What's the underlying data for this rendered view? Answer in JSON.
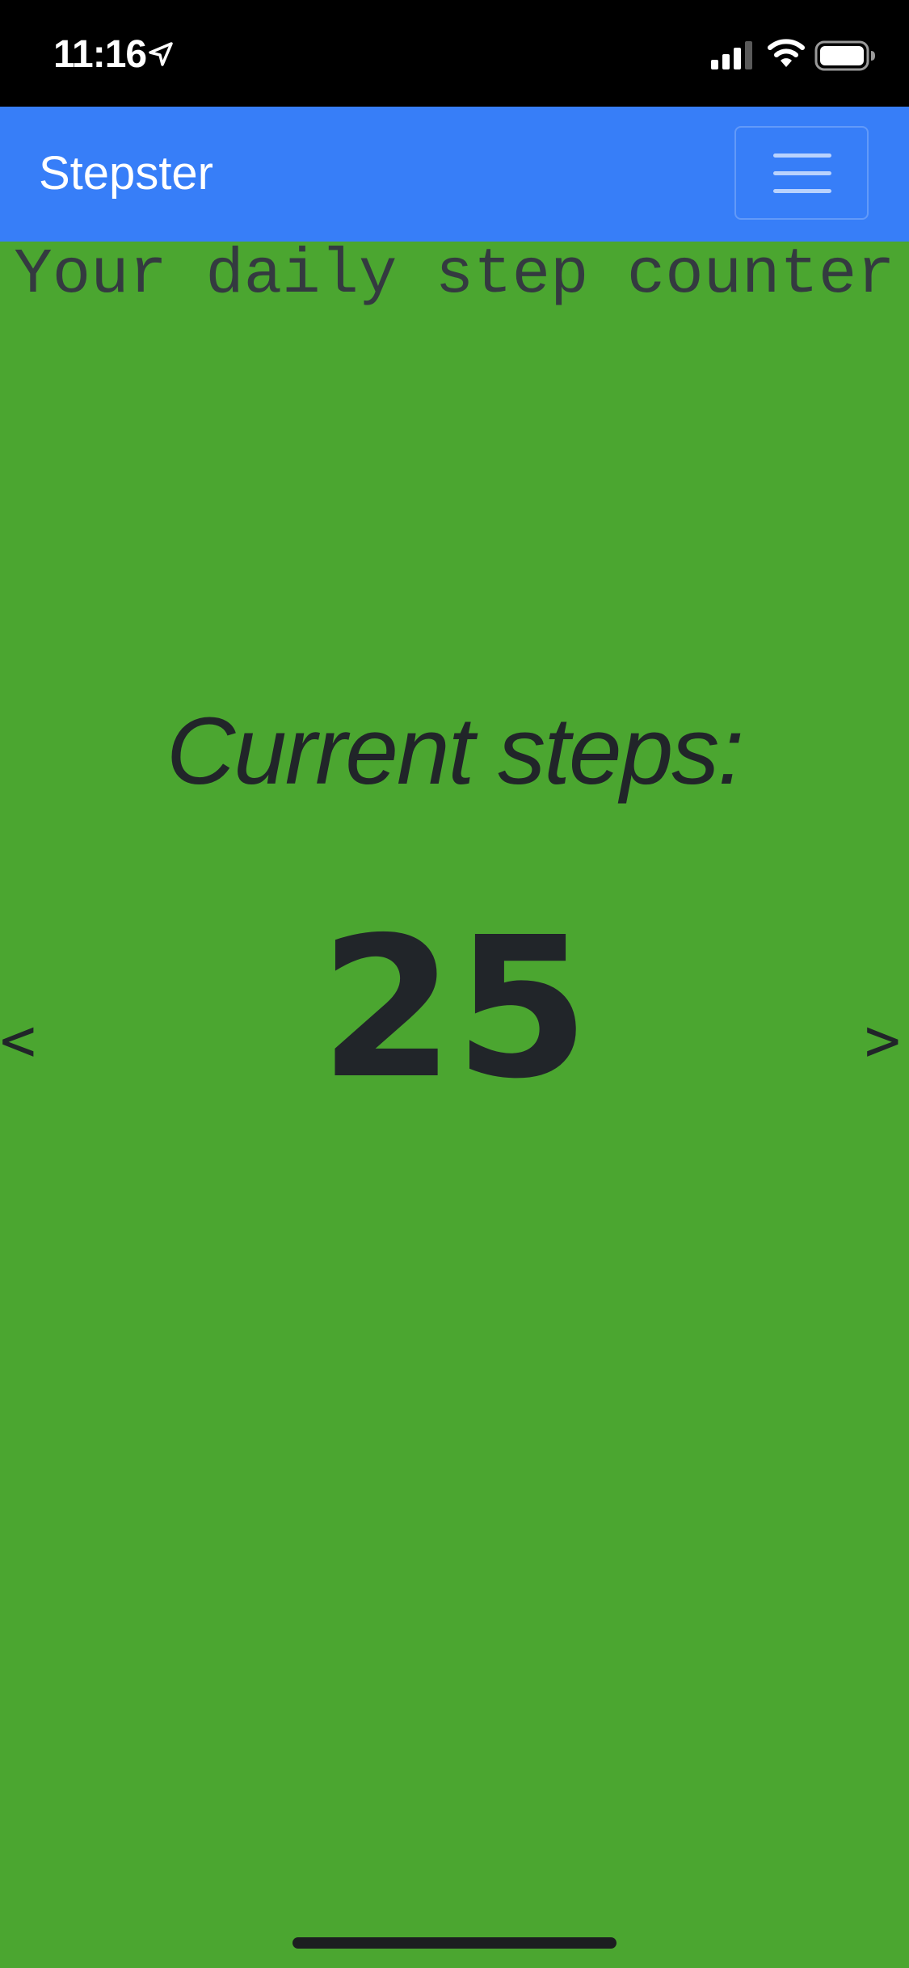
{
  "status_bar": {
    "time": "11:16",
    "icons": [
      "location-arrow-icon",
      "cellular-signal-icon",
      "wifi-icon",
      "battery-icon"
    ]
  },
  "navbar": {
    "brand": "Stepster",
    "menu_icon": "hamburger-menu-icon",
    "background": "#377ef8"
  },
  "main": {
    "subtitle": "Your daily step counter",
    "steps_label": "Current steps:",
    "steps_value": "25",
    "prev_label": "<",
    "next_label": ">",
    "background": "#4ba630"
  }
}
